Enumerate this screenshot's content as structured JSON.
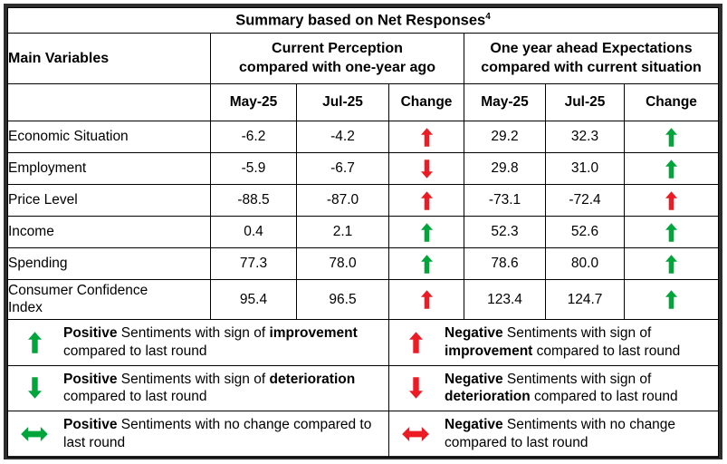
{
  "colors": {
    "green": "#00A63C",
    "red": "#ED1C24"
  },
  "table": {
    "title": "Summary based on Net Responses",
    "title_sup": "4",
    "main_col_header": "Main Variables",
    "group1": {
      "line1": "Current Perception",
      "line2": "compared with one-year ago"
    },
    "group2": {
      "line1": "One year ahead Expectations",
      "line2": "compared with current situation"
    },
    "subheaders": {
      "may": "May-25",
      "jul": "Jul-25",
      "change": "Change"
    }
  },
  "rows": [
    {
      "label": "Economic Situation",
      "cp_may": "-6.2",
      "cp_jul": "-4.2",
      "cp_change": "up-red",
      "ex_may": "29.2",
      "ex_jul": "32.3",
      "ex_change": "up-green"
    },
    {
      "label": "Employment",
      "cp_may": "-5.9",
      "cp_jul": "-6.7",
      "cp_change": "down-red",
      "ex_may": "29.8",
      "ex_jul": "31.0",
      "ex_change": "up-green"
    },
    {
      "label": "Price Level",
      "cp_may": "-88.5",
      "cp_jul": "-87.0",
      "cp_change": "up-red",
      "ex_may": "-73.1",
      "ex_jul": "-72.4",
      "ex_change": "up-red"
    },
    {
      "label": "Income",
      "cp_may": "0.4",
      "cp_jul": "2.1",
      "cp_change": "up-green",
      "ex_may": "52.3",
      "ex_jul": "52.6",
      "ex_change": "up-green"
    },
    {
      "label": "Spending",
      "cp_may": "77.3",
      "cp_jul": "78.0",
      "cp_change": "up-green",
      "ex_may": "78.6",
      "ex_jul": "80.0",
      "ex_change": "up-green"
    },
    {
      "label": "Consumer Confidence\nIndex",
      "cp_may": "95.4",
      "cp_jul": "96.5",
      "cp_change": "up-red",
      "ex_may": "123.4",
      "ex_jul": "124.7",
      "ex_change": "up-green"
    }
  ],
  "legend": {
    "left": [
      {
        "arrow": "up-green",
        "b1": "Positive",
        "t1": " Sentiments with sign of ",
        "b2": "improvement",
        "t2": " compared to last round"
      },
      {
        "arrow": "down-green",
        "b1": "Positive",
        "t1": " Sentiments with sign of ",
        "b2": "deterioration",
        "t2": " compared to last round"
      },
      {
        "arrow": "lr-green",
        "b1": "Positive",
        "t1": " Sentiments with no change compared to last round",
        "b2": "",
        "t2": ""
      }
    ],
    "right": [
      {
        "arrow": "up-red",
        "b1": "Negative",
        "t1": " Sentiments with sign of ",
        "b2": "improvement",
        "t2": " compared to last round"
      },
      {
        "arrow": "down-red",
        "b1": "Negative",
        "t1": " Sentiments with sign of ",
        "b2": "deterioration",
        "t2": " compared to last round"
      },
      {
        "arrow": "lr-red",
        "b1": "Negative",
        "t1": " Sentiments with no change compared to last round",
        "b2": "",
        "t2": ""
      }
    ]
  }
}
